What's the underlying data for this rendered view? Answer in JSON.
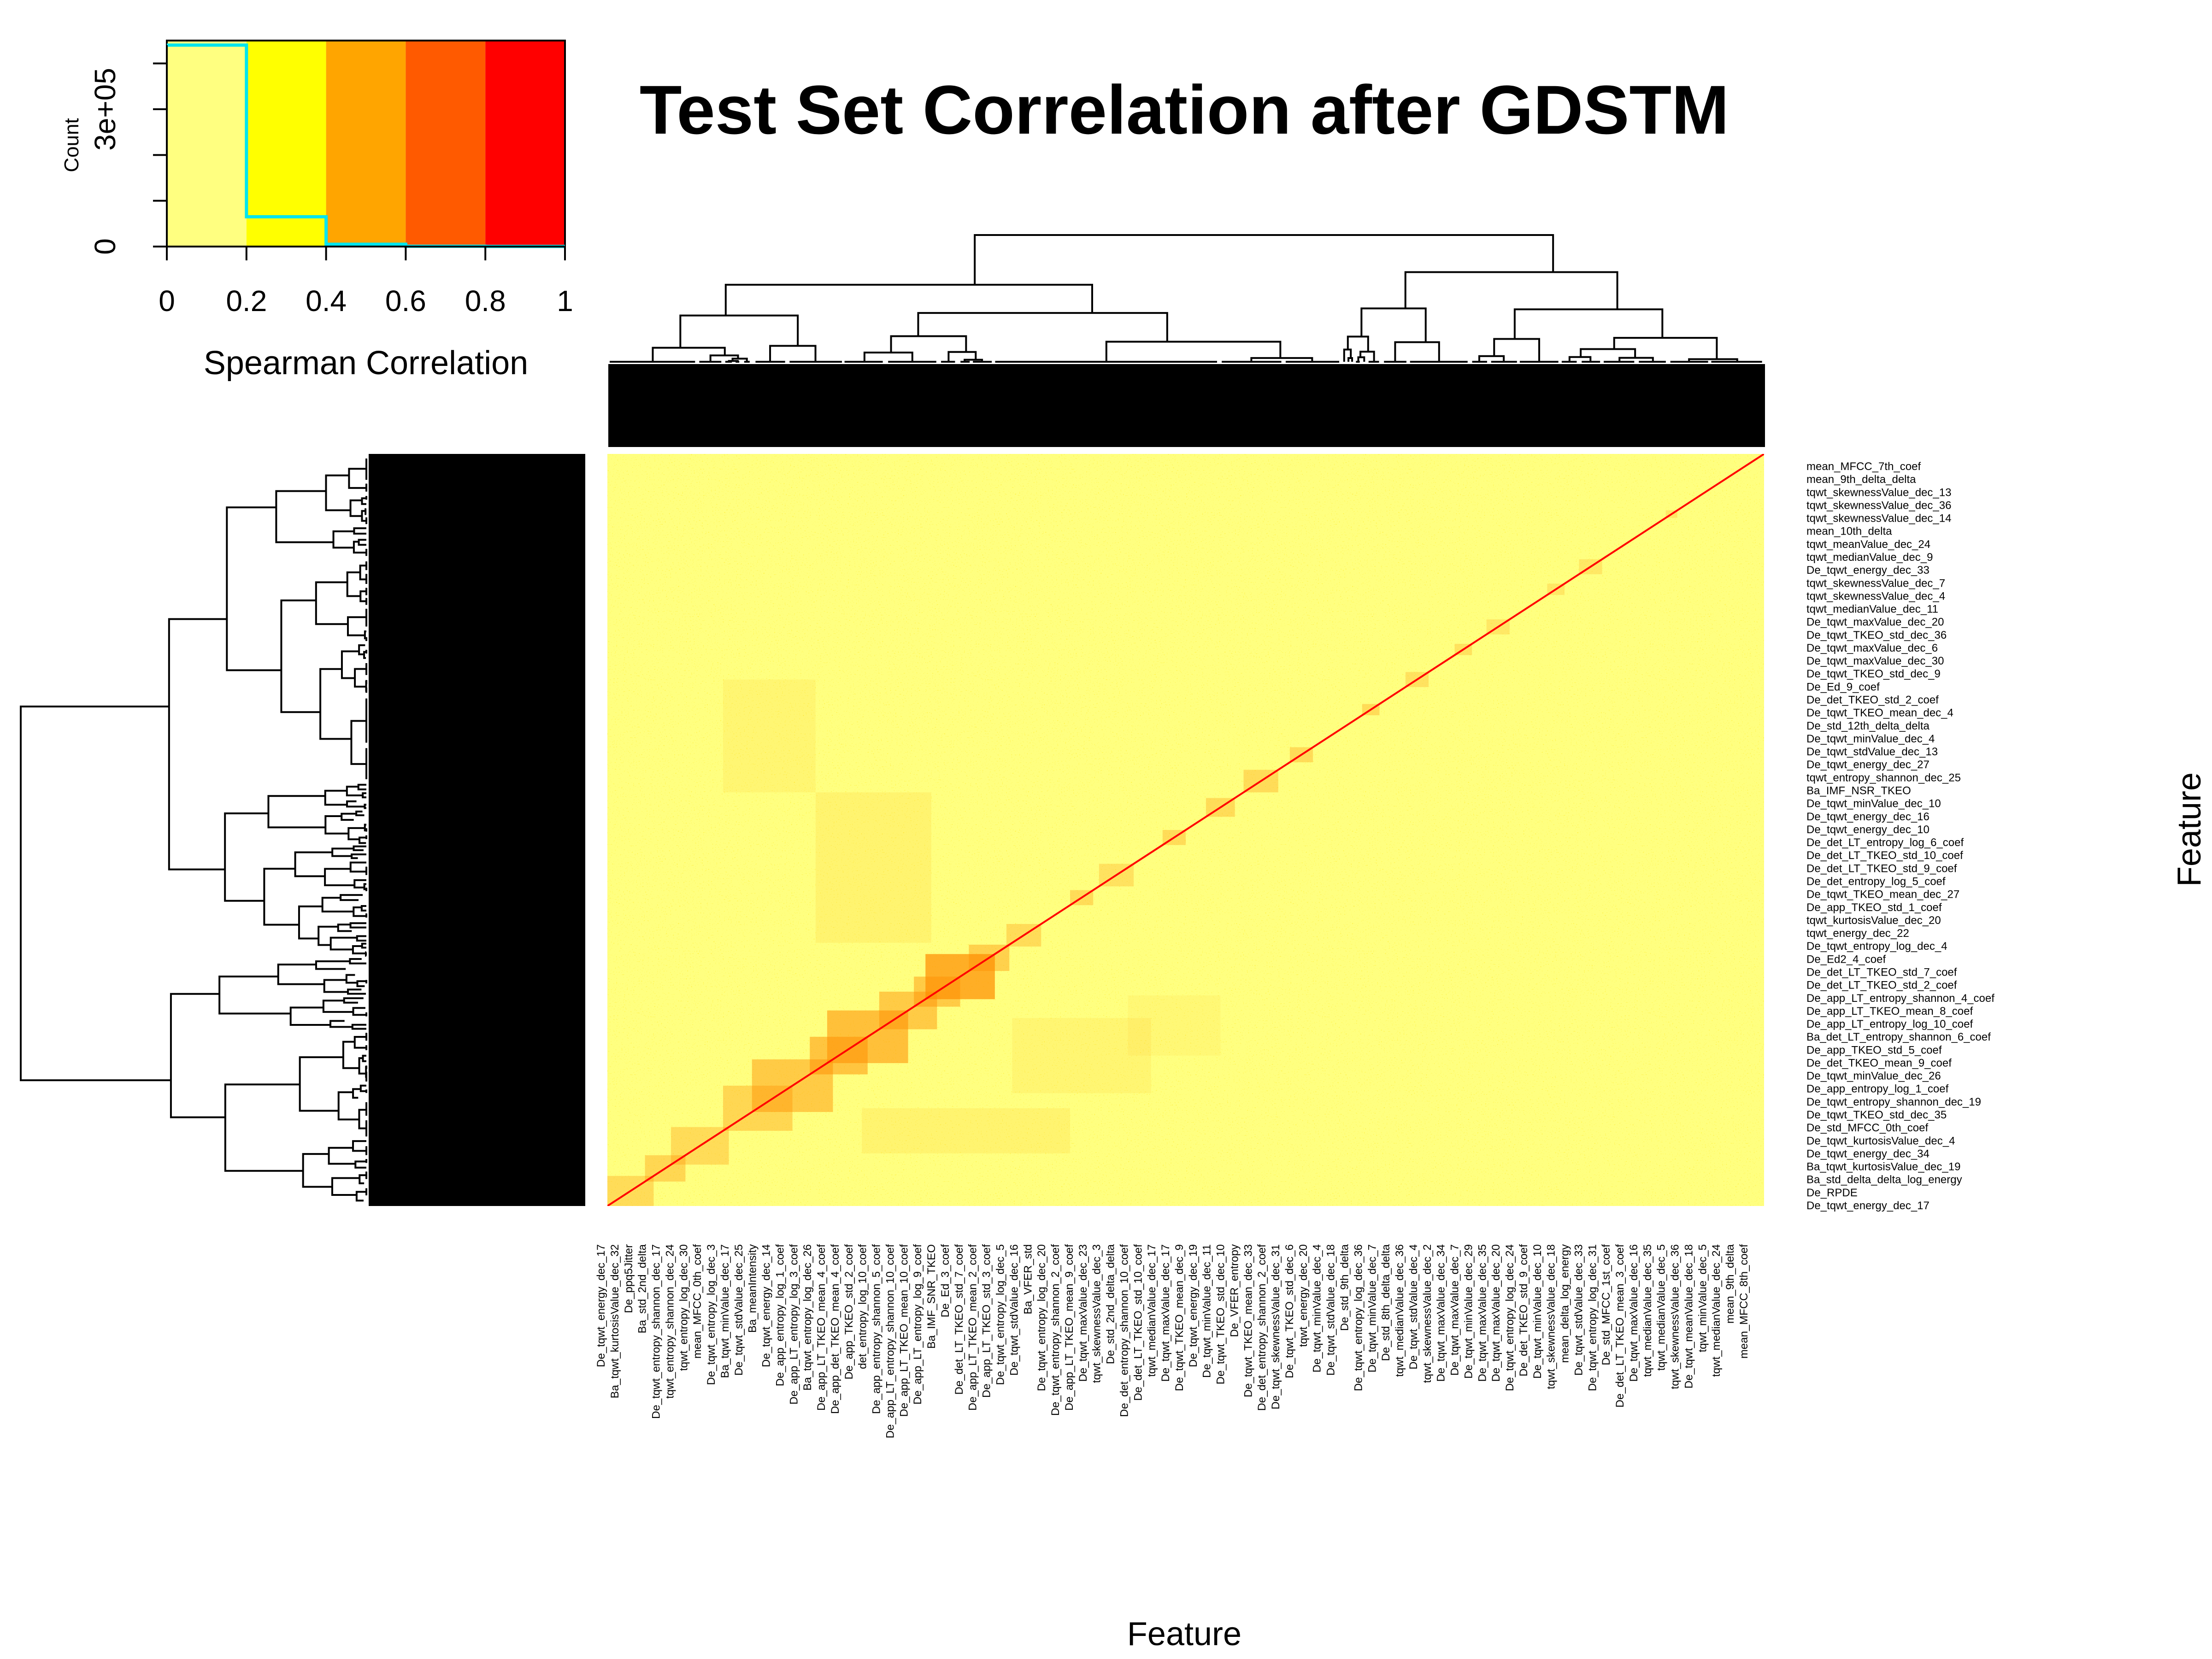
{
  "chart_data": {
    "type": "heatmap",
    "title": "Test Set Correlation after GDSTM",
    "xlabel": "Feature",
    "ylabel": "Feature",
    "grid": false,
    "value_range": [
      0,
      1
    ],
    "color_key": {
      "xlabel": "Spearman Correlation",
      "ylabel": "Count",
      "breaks": [
        0,
        0.2,
        0.4,
        0.6,
        0.8,
        1
      ],
      "colors": [
        "#ffff80",
        "#ffff00",
        "#ffa500",
        "#ff5a00",
        "#ff0000"
      ],
      "x_tick_labels": [
        "0",
        "0.2",
        "0.4",
        "0.6",
        "0.8",
        "1"
      ],
      "y_tick_labels": [
        "0",
        "3e+05"
      ],
      "y_range": [
        0,
        450000
      ],
      "histogram": {
        "bin_edges": [
          0,
          0.2,
          0.4,
          0.6,
          0.8,
          1
        ],
        "counts": [
          440000,
          65000,
          5000,
          600,
          300
        ],
        "color": "#00e5ee"
      }
    },
    "row_labels": [
      "mean_MFCC_7th_coef",
      "mean_9th_delta_delta",
      "tqwt_skewnessValue_dec_13",
      "tqwt_skewnessValue_dec_36",
      "tqwt_skewnessValue_dec_14",
      "mean_10th_delta",
      "tqwt_meanValue_dec_24",
      "tqwt_medianValue_dec_9",
      "De_tqwt_energy_dec_33",
      "tqwt_skewnessValue_dec_7",
      "tqwt_skewnessValue_dec_4",
      "tqwt_medianValue_dec_11",
      "De_tqwt_maxValue_dec_20",
      "De_tqwt_TKEO_std_dec_36",
      "De_tqwt_maxValue_dec_6",
      "De_tqwt_maxValue_dec_30",
      "De_tqwt_TKEO_std_dec_9",
      "De_Ed_9_coef",
      "De_det_TKEO_std_2_coef",
      "De_tqwt_TKEO_mean_dec_4",
      "De_std_12th_delta_delta",
      "De_tqwt_minValue_dec_4",
      "De_tqwt_stdValue_dec_13",
      "De_tqwt_energy_dec_27",
      "tqwt_entropy_shannon_dec_25",
      "Ba_IMF_NSR_TKEO",
      "De_tqwt_minValue_dec_10",
      "De_tqwt_energy_dec_16",
      "De_tqwt_energy_dec_10",
      "De_det_LT_entropy_log_6_coef",
      "De_det_LT_TKEO_std_10_coef",
      "De_det_LT_TKEO_std_9_coef",
      "De_det_entropy_log_5_coef",
      "De_tqwt_TKEO_mean_dec_27",
      "De_app_TKEO_std_1_coef",
      "tqwt_kurtosisValue_dec_20",
      "tqwt_energy_dec_22",
      "De_tqwt_entropy_log_dec_4",
      "De_Ed2_4_coef",
      "De_det_LT_TKEO_std_7_coef",
      "De_det_LT_TKEO_std_2_coef",
      "De_app_LT_entropy_shannon_4_coef",
      "De_app_LT_TKEO_mean_8_coef",
      "De_app_LT_entropy_log_10_coef",
      "Ba_det_LT_entropy_shannon_6_coef",
      "De_app_TKEO_std_5_coef",
      "De_det_TKEO_mean_9_coef",
      "De_tqwt_minValue_dec_26",
      "De_app_entropy_log_1_coef",
      "De_tqwt_entropy_shannon_dec_19",
      "De_tqwt_TKEO_std_dec_35",
      "De_std_MFCC_0th_coef",
      "De_tqwt_kurtosisValue_dec_4",
      "De_tqwt_energy_dec_34",
      "Ba_tqwt_kurtosisValue_dec_19",
      "Ba_std_delta_delta_log_energy",
      "De_RPDE",
      "De_tqwt_energy_dec_17"
    ],
    "col_labels": [
      "De_tqwt_energy_dec_17",
      "Ba_tqwt_kurtosisValue_dec_32",
      "De_ppq5Jitter",
      "Ba_std_2nd_delta",
      "De_tqwt_entropy_shannon_dec_17",
      "tqwt_entropy_shannon_dec_24",
      "tqwt_entropy_log_dec_30",
      "mean_MFCC_0th_coef",
      "De_tqwt_entropy_log_dec_3",
      "Ba_tqwt_minValue_dec_17",
      "De_tqwt_stdValue_dec_25",
      "Ba_meanIntensity",
      "De_tqwt_energy_dec_14",
      "De_app_entropy_log_1_coef",
      "De_app_LT_entropy_log_3_coef",
      "Ba_tqwt_entropy_log_dec_26",
      "De_app_LT_TKEO_mean_4_coef",
      "De_app_det_TKEO_mean_4_coef",
      "De_app_TKEO_std_2_coef",
      "det_entropy_log_10_coef",
      "De_app_entropy_shannon_5_coef",
      "De_app_LT_entropy_shannon_10_coef",
      "De_app_LT_TKEO_mean_10_coef",
      "De_app_LT_entropy_log_9_coef",
      "Ba_IMF_SNR_TKEO",
      "De_Ed_3_coef",
      "De_det_LT_TKEO_std_7_coef",
      "De_app_LT_TKEO_mean_2_coef",
      "De_app_LT_TKEO_std_3_coef",
      "De_tqwt_entropy_log_dec_5",
      "De_tqwt_stdValue_dec_16",
      "Ba_VFER_std",
      "De_tqwt_entropy_log_dec_20",
      "De_tqwt_entropy_shannon_2_coef",
      "De_app_LT_TKEO_mean_9_coef",
      "De_tqwt_maxValue_dec_23",
      "tqwt_skewnessValue_dec_3",
      "De_std_2nd_delta_delta",
      "De_det_entropy_shannon_10_coef",
      "De_det_LT_TKEO_std_10_coef",
      "tqwt_medianValue_dec_17",
      "De_tqwt_maxValue_dec_17",
      "De_tqwt_TKEO_mean_dec_9",
      "De_tqwt_energy_dec_19",
      "De_tqwt_minValue_dec_11",
      "De_tqwt_TKEO_std_dec_10",
      "De_VFER_entropy",
      "De_tqwt_TKEO_mean_dec_33",
      "De_det_entropy_shannon_2_coef",
      "De_tqwt_skewnessValue_dec_31",
      "De_tqwt_TKEO_std_dec_6",
      "tqwt_energy_dec_20",
      "De_tqwt_minValue_dec_4",
      "De_tqwt_stdValue_dec_18",
      "De_std_9th_delta",
      "De_tqwt_entropy_log_dec_36",
      "De_tqwt_minValue_dec_7",
      "De_std_8th_delta_delta",
      "tqwt_medianValue_dec_36",
      "De_tqwt_stdValue_dec_4",
      "tqwt_skewnessValue_dec_2",
      "De_tqwt_maxValue_dec_34",
      "De_tqwt_maxValue_dec_7",
      "De_tqwt_minValue_dec_29",
      "De_tqwt_maxValue_dec_35",
      "De_tqwt_maxValue_dec_20",
      "De_tqwt_entropy_log_dec_24",
      "De_det_TKEO_std_9_coef",
      "De_tqwt_minValue_dec_10",
      "tqwt_skewnessValue_dec_18",
      "mean_delta_log_energy",
      "De_tqwt_stdValue_dec_33",
      "De_tqwt_entropy_log_dec_31",
      "De_std_MFCC_1st_coef",
      "De_det_LT_TKEO_mean_3_coef",
      "De_tqwt_maxValue_dec_16",
      "tqwt_medianValue_dec_35",
      "tqwt_medianValue_dec_5",
      "tqwt_skewnessValue_dec_36",
      "De_tqwt_meanValue_dec_18",
      "tqwt_minValue_dec_5",
      "tqwt_medianValue_dec_24",
      "mean_9th_delta",
      "mean_MFCC_8th_coef"
    ]
  }
}
